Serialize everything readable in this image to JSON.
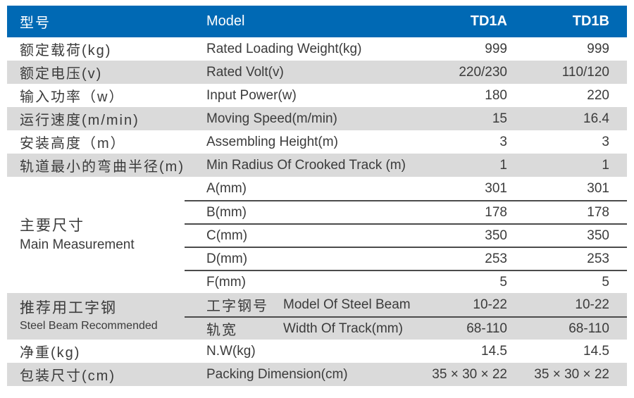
{
  "header": {
    "cn": "型号",
    "en": "Model",
    "td1a": "TD1A",
    "td1b": "TD1B"
  },
  "rows": [
    {
      "cn": "额定载荷(kg)",
      "en": "Rated Loading Weight(kg)",
      "td1a": "999",
      "td1b": "999"
    },
    {
      "cn": "额定电压(v)",
      "en": "Rated Volt(v)",
      "td1a": "220/230",
      "td1b": "110/120"
    },
    {
      "cn": "输入功率（w）",
      "en": "Input Power(w)",
      "td1a": "180",
      "td1b": "220"
    },
    {
      "cn": "运行速度(m/min)",
      "en": "Moving Speed(m/min)",
      "td1a": "15",
      "td1b": "16.4"
    },
    {
      "cn": "安装高度（m）",
      "en": "Assembling Height(m)",
      "td1a": "3",
      "td1b": "3"
    },
    {
      "cn": "轨道最小的弯曲半径(m)",
      "en": "Min Radius Of Crooked Track (m)",
      "td1a": "1",
      "td1b": "1"
    }
  ],
  "main_measurement": {
    "cn": "主要尺寸",
    "en": "Main Measurement",
    "rows": [
      {
        "label": "A(mm)",
        "td1a": "301",
        "td1b": "301"
      },
      {
        "label": "B(mm)",
        "td1a": "178",
        "td1b": "178"
      },
      {
        "label": "C(mm)",
        "td1a": "350",
        "td1b": "350"
      },
      {
        "label": "D(mm)",
        "td1a": "253",
        "td1b": "253"
      },
      {
        "label": "F(mm)",
        "td1a": "5",
        "td1b": "5"
      }
    ]
  },
  "steel_beam": {
    "cn": "推荐用工字钢",
    "en": "Steel Beam Recommended",
    "rows": [
      {
        "cn": "工字钢号",
        "en": "Model Of Steel Beam",
        "td1a": "10-22",
        "td1b": "10-22"
      },
      {
        "cn": "轨宽",
        "en": "Width Of Track(mm)",
        "td1a": "68-110",
        "td1b": "68-110"
      }
    ]
  },
  "bottom_rows": [
    {
      "cn": "净重(kg)",
      "en": "N.W(kg)",
      "td1a": "14.5",
      "td1b": "14.5"
    },
    {
      "cn": "包装尺寸(cm)",
      "en": "Packing Dimension(cm)",
      "td1a": "35 × 30 × 22",
      "td1b": "35 × 30 × 22"
    }
  ],
  "colors": {
    "header_bg": "#0069b4",
    "header_text": "#ffffff",
    "alt_row_bg": "#dadada",
    "body_text": "#3b3b3b",
    "divider_line": "#4b4b4b"
  }
}
